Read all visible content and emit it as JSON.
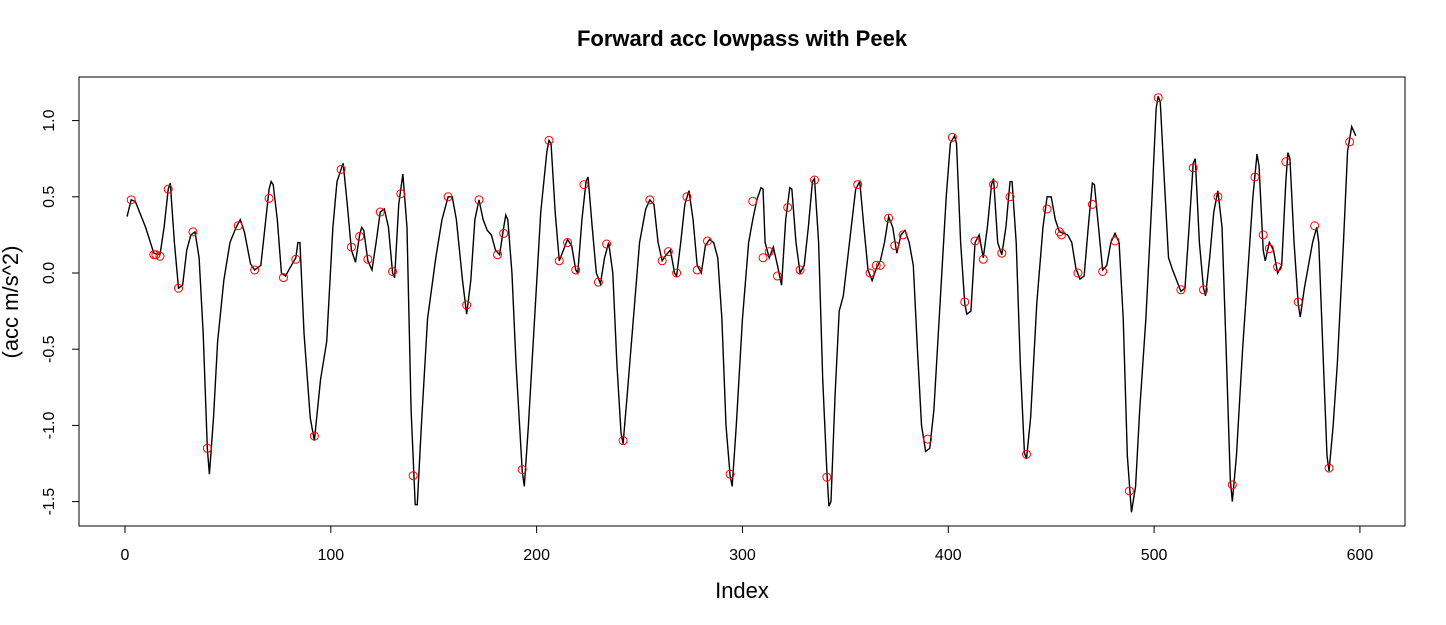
{
  "chart_data": {
    "type": "line",
    "title": "Forward acc lowpass with Peek",
    "x_label": "Index",
    "y_label": "(acc m/s^2)",
    "xlim": [
      -22.35,
      621.9
    ],
    "ylim": [
      -1.66,
      1.286
    ],
    "xticks": [
      0,
      100,
      200,
      300,
      400,
      500,
      600
    ],
    "yticks": [
      -1.5,
      {
        "value": -1,
        "label": "-1.0"
      },
      -0.5,
      {
        "value": 0,
        "label": "0.0"
      },
      0.5,
      {
        "value": 1,
        "label": "1.0"
      }
    ],
    "series": [
      {
        "type": "line",
        "color": "#000000",
        "x": [
          1,
          3,
          5,
          10,
          14,
          17,
          19,
          21,
          22,
          24,
          26,
          28,
          30,
          32,
          34,
          36,
          38,
          40,
          41,
          43,
          45,
          48,
          51,
          54,
          56,
          58,
          61,
          63,
          66,
          68,
          70,
          71,
          72,
          74,
          76,
          78,
          80,
          83,
          84,
          85,
          87,
          90,
          92,
          95,
          98,
          101,
          103,
          106,
          108,
          110,
          112,
          114,
          115,
          116,
          118,
          120,
          122,
          124,
          126,
          128,
          130,
          131,
          133,
          135,
          137,
          139,
          141,
          142,
          144,
          147,
          151,
          154,
          157,
          159,
          161,
          164,
          166,
          168,
          170,
          172,
          174,
          176,
          178,
          180,
          182,
          184,
          185,
          186,
          188,
          190,
          193,
          194,
          196,
          199,
          202,
          205,
          206,
          207,
          209,
          211,
          213,
          215,
          217,
          219,
          220,
          222,
          224,
          225,
          227,
          229,
          231,
          233,
          235,
          237,
          239,
          241,
          242,
          244,
          247,
          250,
          253,
          255,
          257,
          259,
          261,
          263,
          265,
          267,
          268,
          270,
          272,
          274,
          276,
          278,
          280,
          282,
          284,
          286,
          288,
          290,
          292,
          294,
          295,
          297,
          300,
          303,
          305,
          307,
          309,
          310,
          311,
          313,
          315,
          317,
          319,
          321,
          323,
          324,
          326,
          328,
          330,
          332,
          334,
          335,
          337,
          339,
          341,
          342,
          343,
          345,
          347,
          349,
          352,
          355,
          357,
          359,
          361,
          363,
          365,
          367,
          369,
          371,
          373,
          375,
          377,
          379,
          381,
          383,
          385,
          387,
          389,
          391,
          393,
          396,
          399,
          401,
          403,
          404,
          406,
          408,
          409,
          411,
          413,
          415,
          417,
          419,
          421,
          422,
          424,
          426,
          428,
          430,
          431,
          433,
          435,
          437,
          438,
          440,
          443,
          446,
          448,
          450,
          452,
          454,
          456,
          458,
          460,
          462,
          464,
          466,
          468,
          470,
          471,
          473,
          475,
          477,
          479,
          481,
          483,
          485,
          487,
          489,
          491,
          493,
          496,
          499,
          501,
          502,
          503,
          505,
          507,
          509,
          511,
          513,
          515,
          517,
          519,
          520,
          522,
          524,
          525,
          527,
          529,
          531,
          533,
          535,
          537,
          538,
          540,
          543,
          546,
          548,
          550,
          551,
          553,
          554,
          556,
          558,
          560,
          562,
          564,
          565,
          566,
          568,
          570,
          571,
          573,
          575,
          577,
          579,
          580,
          582,
          584,
          585,
          587,
          589,
          592,
          594,
          596,
          598
        ],
        "values": [
          0.37,
          0.48,
          0.47,
          0.3,
          0.13,
          0.12,
          0.3,
          0.55,
          0.59,
          0.2,
          -0.1,
          -0.08,
          0.15,
          0.25,
          0.27,
          0.1,
          -0.4,
          -1.15,
          -1.32,
          -0.95,
          -0.45,
          -0.05,
          0.2,
          0.3,
          0.35,
          0.27,
          0.06,
          0.02,
          0.05,
          0.3,
          0.55,
          0.6,
          0.58,
          0.35,
          0.0,
          -0.02,
          0.03,
          0.1,
          0.2,
          0.2,
          -0.4,
          -0.95,
          -1.1,
          -0.7,
          -0.45,
          0.3,
          0.6,
          0.72,
          0.45,
          0.15,
          0.07,
          0.25,
          0.3,
          0.28,
          0.08,
          0.02,
          0.2,
          0.4,
          0.42,
          0.3,
          0.0,
          -0.03,
          0.45,
          0.65,
          0.3,
          -0.9,
          -1.52,
          -1.52,
          -1.0,
          -0.3,
          0.1,
          0.35,
          0.5,
          0.5,
          0.35,
          -0.05,
          -0.27,
          -0.05,
          0.35,
          0.48,
          0.35,
          0.28,
          0.25,
          0.15,
          0.12,
          0.3,
          0.38,
          0.35,
          0.0,
          -0.6,
          -1.3,
          -1.4,
          -1.0,
          -0.3,
          0.4,
          0.8,
          0.87,
          0.85,
          0.4,
          0.08,
          0.15,
          0.22,
          0.18,
          0.02,
          0.0,
          0.35,
          0.6,
          0.63,
          0.3,
          0.0,
          -0.07,
          0.1,
          0.2,
          0.0,
          -0.6,
          -1.05,
          -1.12,
          -0.8,
          -0.3,
          0.2,
          0.42,
          0.48,
          0.45,
          0.2,
          0.08,
          0.12,
          0.15,
          0.0,
          -0.02,
          0.2,
          0.45,
          0.54,
          0.35,
          0.05,
          0.0,
          0.18,
          0.22,
          0.2,
          0.1,
          -0.3,
          -1.0,
          -1.33,
          -1.4,
          -1.0,
          -0.3,
          0.2,
          0.35,
          0.48,
          0.56,
          0.55,
          0.2,
          0.1,
          0.17,
          0.05,
          -0.08,
          0.35,
          0.56,
          0.55,
          0.2,
          0.0,
          0.05,
          0.3,
          0.6,
          0.62,
          0.2,
          -0.7,
          -1.3,
          -1.53,
          -1.5,
          -0.8,
          -0.25,
          -0.15,
          0.2,
          0.55,
          0.6,
          0.3,
          0.02,
          -0.05,
          0.03,
          0.08,
          0.2,
          0.37,
          0.3,
          0.13,
          0.25,
          0.28,
          0.2,
          0.05,
          -0.5,
          -1.0,
          -1.17,
          -1.15,
          -0.9,
          -0.2,
          0.5,
          0.85,
          0.9,
          0.85,
          0.2,
          -0.2,
          -0.27,
          -0.25,
          0.2,
          0.25,
          0.1,
          0.3,
          0.58,
          0.62,
          0.2,
          0.12,
          0.3,
          0.6,
          0.6,
          0.2,
          -0.6,
          -1.18,
          -1.22,
          -0.95,
          -0.2,
          0.3,
          0.5,
          0.5,
          0.35,
          0.27,
          0.26,
          0.25,
          0.2,
          0.03,
          -0.04,
          -0.02,
          0.3,
          0.59,
          0.58,
          0.3,
          0.02,
          0.05,
          0.2,
          0.26,
          0.2,
          -0.3,
          -1.2,
          -1.57,
          -1.4,
          -0.9,
          -0.3,
          0.5,
          1.08,
          1.16,
          1.12,
          0.6,
          0.1,
          0.02,
          -0.05,
          -0.12,
          -0.1,
          0.3,
          0.72,
          0.75,
          0.2,
          -0.1,
          -0.15,
          0.1,
          0.4,
          0.54,
          0.3,
          -0.5,
          -1.35,
          -1.5,
          -1.2,
          -0.5,
          0.1,
          0.5,
          0.78,
          0.7,
          0.15,
          0.08,
          0.2,
          0.15,
          0.0,
          0.05,
          0.6,
          0.79,
          0.75,
          0.2,
          -0.2,
          -0.29,
          -0.1,
          0.05,
          0.2,
          0.3,
          0.2,
          -0.5,
          -1.2,
          -1.3,
          -1.0,
          -0.6,
          0.2,
          0.8,
          0.96,
          0.9
        ]
      },
      {
        "type": "scatter",
        "color": "#ff0000",
        "x": [
          3,
          14,
          15,
          17,
          21,
          26,
          33,
          40,
          55,
          63,
          70,
          77,
          83,
          92,
          105,
          110,
          114,
          118,
          124,
          130,
          134,
          140,
          157,
          166,
          172,
          181,
          184,
          193,
          206,
          211,
          215,
          219,
          223,
          230,
          234,
          242,
          255,
          261,
          264,
          268,
          273,
          278,
          283,
          294,
          305,
          310,
          313,
          317,
          322,
          328,
          335,
          341,
          356,
          362,
          365,
          367,
          371,
          374,
          378,
          390,
          402,
          408,
          413,
          417,
          422,
          426,
          430,
          438,
          448,
          454,
          455,
          463,
          470,
          475,
          481,
          488,
          502,
          513,
          519,
          524,
          531,
          538,
          549,
          553,
          556,
          560,
          564,
          570,
          578,
          585,
          595
        ],
        "values": [
          0.48,
          0.12,
          0.12,
          0.11,
          0.55,
          -0.1,
          0.27,
          -1.15,
          0.31,
          0.02,
          0.49,
          -0.03,
          0.09,
          -1.07,
          0.68,
          0.17,
          0.24,
          0.09,
          0.4,
          0.01,
          0.52,
          -1.33,
          0.5,
          -0.21,
          0.48,
          0.12,
          0.26,
          -1.29,
          0.87,
          0.08,
          0.2,
          0.02,
          0.58,
          -0.06,
          0.19,
          -1.1,
          0.48,
          0.08,
          0.14,
          0.0,
          0.5,
          0.02,
          0.21,
          -1.32,
          0.47,
          0.1,
          0.14,
          -0.02,
          0.43,
          0.02,
          0.61,
          -1.34,
          0.58,
          0.0,
          0.05,
          0.05,
          0.36,
          0.18,
          0.25,
          -1.09,
          0.89,
          -0.19,
          0.21,
          0.09,
          0.58,
          0.13,
          0.5,
          -1.19,
          0.42,
          0.27,
          0.25,
          0.0,
          0.45,
          0.01,
          0.21,
          -1.43,
          1.15,
          -0.11,
          0.69,
          -0.11,
          0.5,
          -1.39,
          0.63,
          0.25,
          0.16,
          0.04,
          0.73,
          -0.19,
          0.31,
          -1.28,
          0.86
        ]
      }
    ]
  }
}
